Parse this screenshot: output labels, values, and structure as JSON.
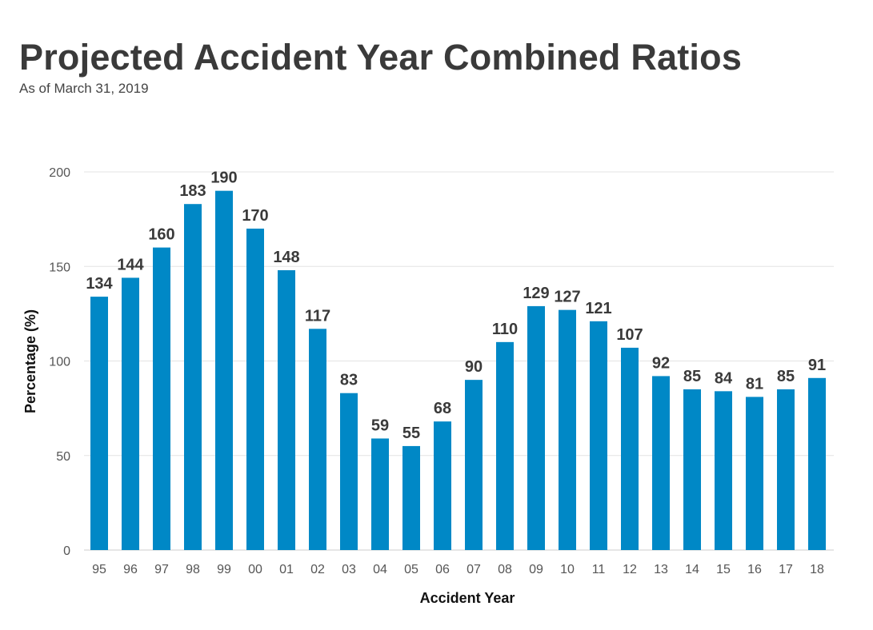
{
  "header": {
    "title": "Projected Accident Year Combined Ratios",
    "subtitle": "As of March 31, 2019"
  },
  "chart_data": {
    "type": "bar",
    "title": "Projected Accident Year Combined Ratios",
    "subtitle": "As of March 31, 2019",
    "xlabel": "Accident Year",
    "ylabel": "Percentage (%)",
    "ylim": [
      0,
      200
    ],
    "yticks": [
      0,
      50,
      100,
      150,
      200
    ],
    "grid": true,
    "bar_color": "#0088c6",
    "categories": [
      "95",
      "96",
      "97",
      "98",
      "99",
      "00",
      "01",
      "02",
      "03",
      "04",
      "05",
      "06",
      "07",
      "08",
      "09",
      "10",
      "11",
      "12",
      "13",
      "14",
      "15",
      "16",
      "17",
      "18"
    ],
    "values": [
      134,
      144,
      160,
      183,
      190,
      170,
      148,
      117,
      83,
      59,
      55,
      68,
      90,
      110,
      129,
      127,
      121,
      107,
      92,
      85,
      84,
      81,
      85,
      91
    ]
  }
}
